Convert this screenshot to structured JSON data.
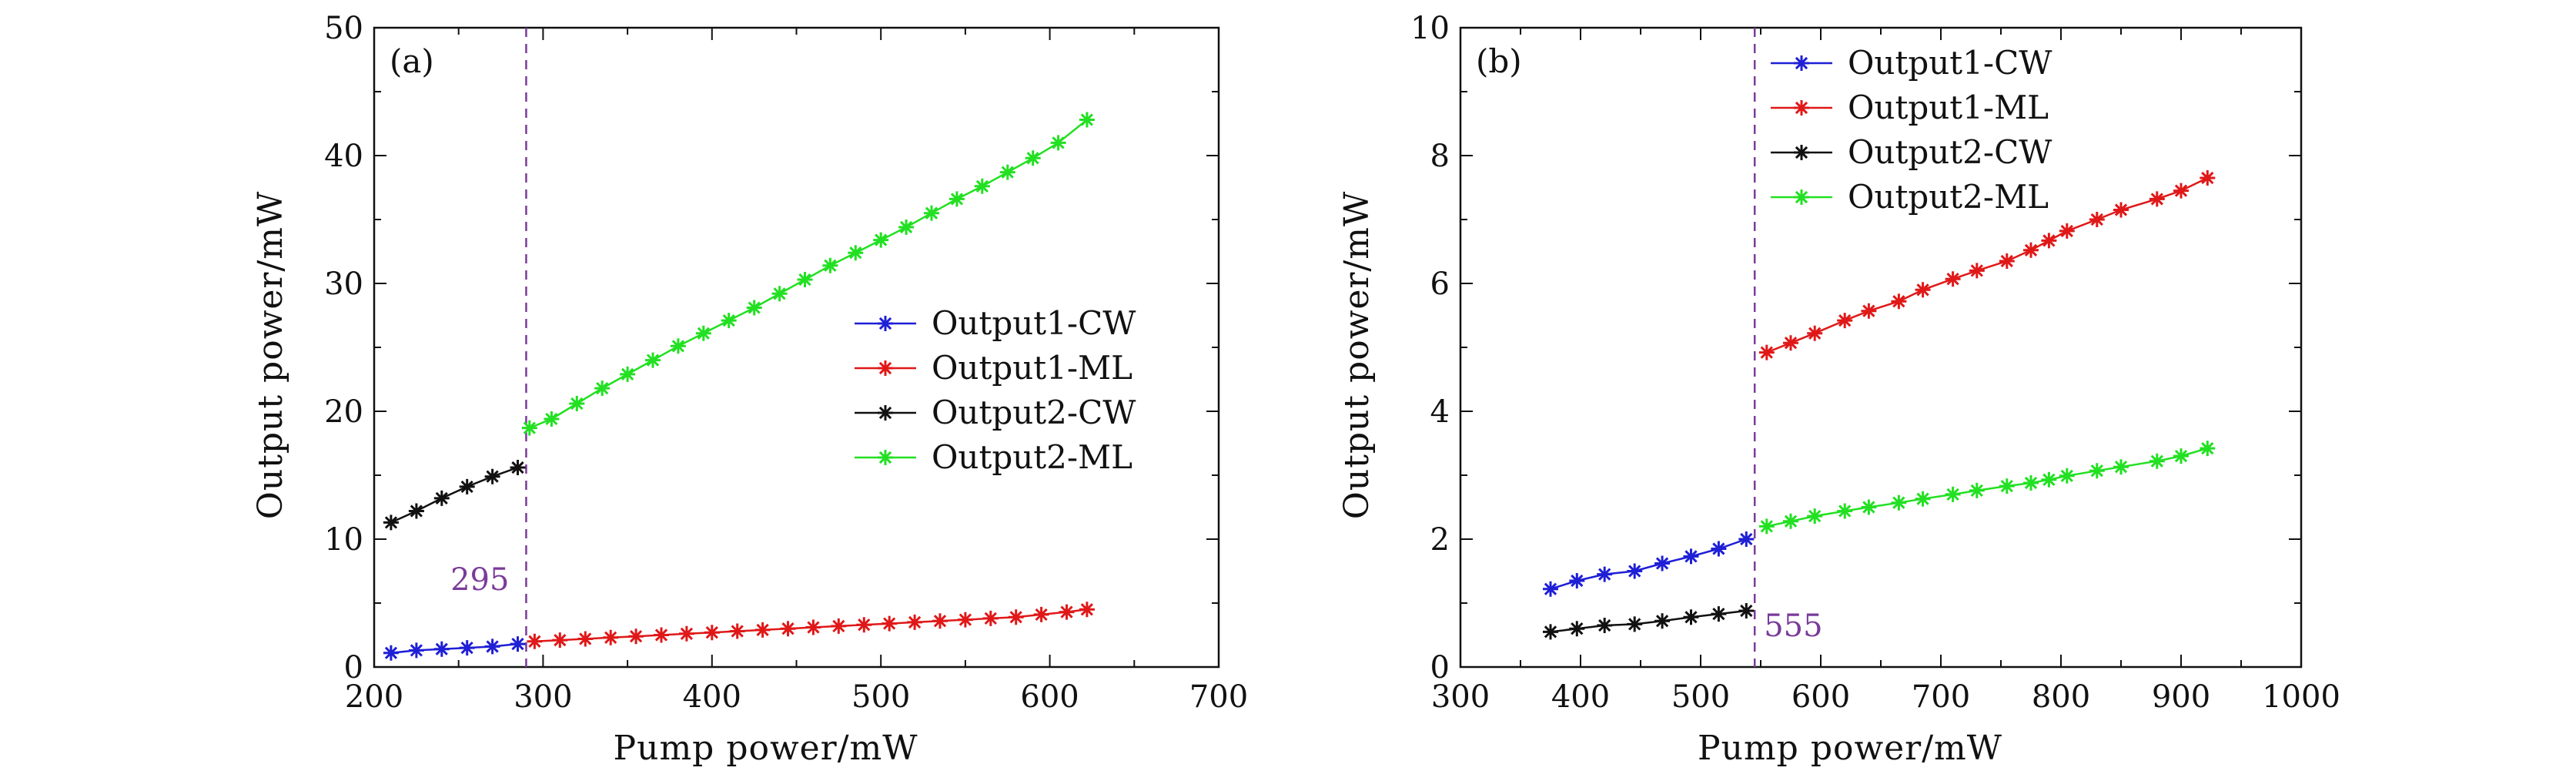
{
  "chart_data": [
    {
      "type": "line",
      "panel_label": "(a)",
      "xlabel": "Pump power/mW",
      "ylabel": "Output  power/mW",
      "xlim": [
        200,
        700
      ],
      "ylim": [
        0,
        50
      ],
      "xticks": [
        200,
        300,
        400,
        500,
        600,
        700
      ],
      "yticks": [
        0,
        10,
        20,
        30,
        40,
        50
      ],
      "legend_position": "center-right",
      "threshold": {
        "x": 290,
        "label": "295",
        "color": "#7a3b9a"
      },
      "series": [
        {
          "name": "Output1-CW",
          "color": "#1f1fd6",
          "x": [
            210,
            225,
            240,
            255,
            270,
            285
          ],
          "y": [
            1.1,
            1.3,
            1.4,
            1.5,
            1.6,
            1.8
          ]
        },
        {
          "name": "Output1-ML",
          "color": "#e01818",
          "x": [
            295,
            310,
            325,
            340,
            355,
            370,
            385,
            400,
            415,
            430,
            445,
            460,
            475,
            490,
            505,
            520,
            535,
            550,
            565,
            580,
            595,
            610,
            622
          ],
          "y": [
            2.0,
            2.1,
            2.2,
            2.3,
            2.4,
            2.5,
            2.6,
            2.7,
            2.8,
            2.9,
            3.0,
            3.1,
            3.2,
            3.3,
            3.4,
            3.5,
            3.6,
            3.7,
            3.8,
            3.9,
            4.1,
            4.3,
            4.5
          ]
        },
        {
          "name": "Output2-CW",
          "color": "#111111",
          "x": [
            210,
            225,
            240,
            255,
            270,
            285
          ],
          "y": [
            11.3,
            12.2,
            13.2,
            14.1,
            14.9,
            15.6
          ]
        },
        {
          "name": "Output2-ML",
          "color": "#22e022",
          "x": [
            292,
            305,
            320,
            335,
            350,
            365,
            380,
            395,
            410,
            425,
            440,
            455,
            470,
            485,
            500,
            515,
            530,
            545,
            560,
            575,
            590,
            605,
            622
          ],
          "y": [
            18.7,
            19.4,
            20.6,
            21.8,
            22.9,
            24.0,
            25.1,
            26.1,
            27.1,
            28.1,
            29.2,
            30.3,
            31.4,
            32.4,
            33.4,
            34.4,
            35.5,
            36.6,
            37.6,
            38.7,
            39.8,
            41.0,
            42.8
          ]
        }
      ]
    },
    {
      "type": "line",
      "panel_label": "(b)",
      "xlabel": "Pump power/mW",
      "ylabel": "Output  power/mW",
      "xlim": [
        300,
        1000
      ],
      "ylim": [
        0,
        10
      ],
      "xticks": [
        300,
        400,
        500,
        600,
        700,
        800,
        900,
        1000
      ],
      "yticks": [
        0,
        2,
        4,
        6,
        8,
        10
      ],
      "legend_position": "top-left",
      "threshold": {
        "x": 545,
        "label": "555",
        "color": "#7a3b9a"
      },
      "series": [
        {
          "name": "Output1-CW",
          "color": "#1f1fd6",
          "x": [
            375,
            397,
            420,
            445,
            468,
            492,
            515,
            538
          ],
          "y": [
            1.22,
            1.35,
            1.45,
            1.5,
            1.62,
            1.73,
            1.85,
            2.0
          ]
        },
        {
          "name": "Output1-ML",
          "color": "#e01818",
          "x": [
            555,
            575,
            595,
            620,
            640,
            665,
            685,
            710,
            730,
            755,
            775,
            790,
            805,
            830,
            850,
            880,
            900,
            922
          ],
          "y": [
            4.92,
            5.07,
            5.22,
            5.42,
            5.57,
            5.72,
            5.9,
            6.07,
            6.2,
            6.35,
            6.52,
            6.67,
            6.82,
            7.0,
            7.15,
            7.32,
            7.45,
            7.65
          ]
        },
        {
          "name": "Output2-CW",
          "color": "#111111",
          "x": [
            375,
            397,
            420,
            445,
            468,
            492,
            515,
            538
          ],
          "y": [
            0.55,
            0.6,
            0.65,
            0.67,
            0.72,
            0.78,
            0.83,
            0.88
          ]
        },
        {
          "name": "Output2-ML",
          "color": "#22e022",
          "x": [
            555,
            575,
            595,
            620,
            640,
            665,
            685,
            710,
            730,
            755,
            775,
            790,
            805,
            830,
            850,
            880,
            900,
            922
          ],
          "y": [
            2.2,
            2.28,
            2.36,
            2.44,
            2.5,
            2.57,
            2.63,
            2.7,
            2.76,
            2.83,
            2.88,
            2.93,
            2.99,
            3.07,
            3.13,
            3.22,
            3.3,
            3.42
          ]
        }
      ]
    }
  ]
}
